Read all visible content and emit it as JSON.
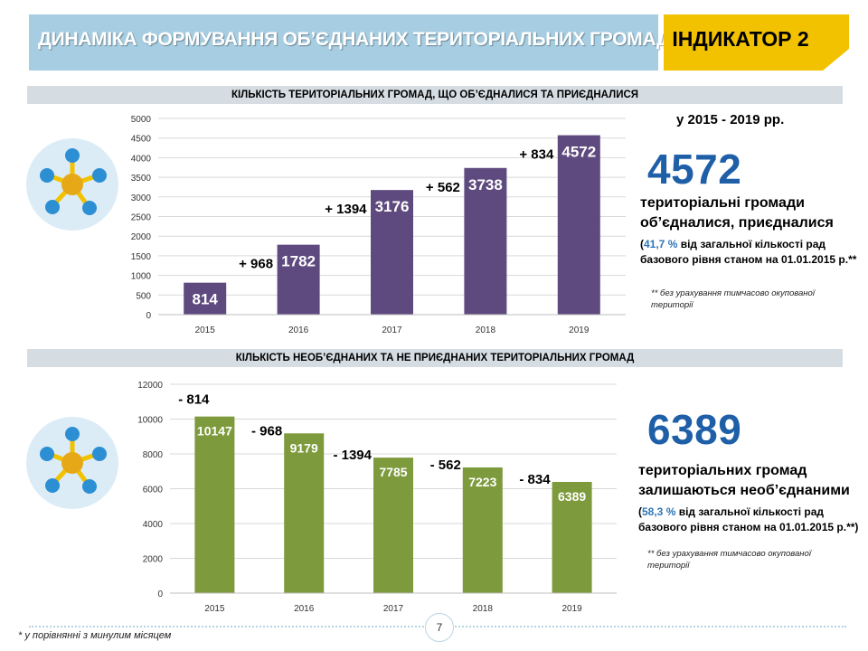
{
  "header": {
    "title": "ДИНАМІКА ФОРМУВАННЯ ОБ’ЄДНАНИХ ТЕРИТОРІАЛЬНИХ ГРОМАД",
    "indicator": "ІНДИКАТОР 2"
  },
  "section1": {
    "title": "КІЛЬКІСТЬ ТЕРИТОРІАЛЬНИХ ГРОМАД, ЩО ОБ’ЄДНАЛИСЯ ТА ПРИЄДНАЛИСЯ",
    "period": "у 2015 - 2019 рр.",
    "big_number": "4572",
    "desc_line1": "територіальні громади",
    "desc_line2": "об’єдналися, приєдналися",
    "pct_open": "(",
    "pct": "41,7 %",
    "pct_rest": " від загальної кількості рад",
    "pct_line2": "базового рівня станом на 01.01.2015 р.**",
    "note_line1": "** без урахування тимчасово окупованої",
    "note_line2": "території"
  },
  "section2": {
    "title": "КІЛЬКІСТЬ НЕОБ’ЄДНАНИХ ТА НЕ ПРИЄДНАНИХ ТЕРИТОРІАЛЬНИХ ГРОМАД",
    "big_number": "6389",
    "desc_line1": "територіальних громад",
    "desc_line2": "залишаються необ’єднаними",
    "pct_open": "(",
    "pct": "58,3 %",
    "pct_rest": " від загальної кількості рад",
    "pct_line2": "базового рівня станом на 01.01.2015 р.**)",
    "note_line1": "** без урахування тимчасово окупованої",
    "note_line2": "території"
  },
  "icons": {
    "top": "network-hub-icon",
    "bottom": "network-hub-icon"
  },
  "colors": {
    "banner": "#a6cde1",
    "indicator": "#f2c200",
    "bar_purple": "#5e4a7e",
    "bar_green": "#7d9a3c",
    "accent_blue": "#1f5fa8"
  },
  "chart_data": [
    {
      "type": "bar",
      "categories": [
        "2015",
        "2016",
        "2017",
        "2018",
        "2019"
      ],
      "values": [
        814,
        1782,
        3176,
        3738,
        4572
      ],
      "data_labels": [
        "814",
        "1782",
        "3176",
        "3738",
        "4572"
      ],
      "annotations": [
        "",
        "+ 968",
        "+ 1394",
        "+ 562",
        "+ 834"
      ],
      "yticks": [
        "0",
        "500",
        "1000",
        "1500",
        "2000",
        "2500",
        "3000",
        "3500",
        "4000",
        "4500",
        "5000"
      ],
      "ylim": [
        0,
        5000
      ],
      "color": "#5e4a7e",
      "grid": true
    },
    {
      "type": "bar",
      "categories": [
        "2015",
        "2016",
        "2017",
        "2018",
        "2019"
      ],
      "values": [
        10147,
        9179,
        7785,
        7223,
        6389
      ],
      "data_labels": [
        "10147",
        "9179",
        "7785",
        "7223",
        "6389"
      ],
      "annotations": [
        "- 814",
        "- 968",
        "- 1394",
        "- 562",
        "- 834"
      ],
      "yticks": [
        "0",
        "2000",
        "4000",
        "6000",
        "8000",
        "10000",
        "12000"
      ],
      "ylim": [
        0,
        12000
      ],
      "color": "#7d9a3c",
      "grid": true
    }
  ],
  "footer": {
    "page_number": "7",
    "footnote": "* у порівнянні з минулим місяцем"
  }
}
